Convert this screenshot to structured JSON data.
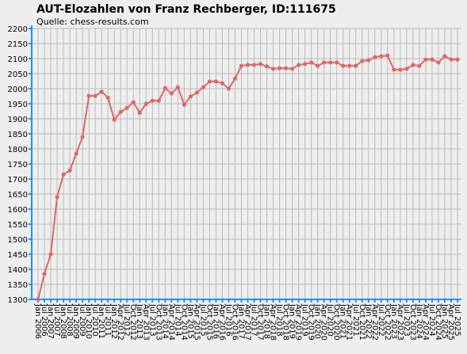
{
  "chart_data": {
    "type": "line",
    "title": "AUT-Elozahlen von Franz Rechberger, ID:111675",
    "subtitle": "Quelle: chess-results.com",
    "categories": [
      "Jan 2006",
      "Jul 2006",
      "Jan 2007",
      "Jul 2007",
      "Jan 2008",
      "Jul 2008",
      "Jan 2009",
      "Jul 2009",
      "Jan 2010",
      "Jul 2010",
      "Jan 2011",
      "Jul 2011",
      "Jan 2012",
      "Apr 2012",
      "Jul 2012",
      "Oct 2012",
      "Jan 2013",
      "Apr 2013",
      "Jul 2013",
      "Oct 2013",
      "Jan 2014",
      "Apr 2014",
      "Jul 2014",
      "Oct 2014",
      "Jan 2015",
      "Apr 2015",
      "Jul 2015",
      "Oct 2015",
      "Jan 2016",
      "Apr 2016",
      "Jul 2016",
      "Oct 2016",
      "Jan 2017",
      "Apr 2017",
      "Jul 2017",
      "Oct 2017",
      "Jan 2018",
      "Apr 2018",
      "Jul 2018",
      "Oct 2018",
      "Jan 2019",
      "Apr 2019",
      "Jul 2019",
      "Oct 2019",
      "Jan 2020",
      "Apr 2020",
      "Jul 2020",
      "Oct 2020",
      "Jan 2021",
      "Apr 2021",
      "Jul 2021",
      "Oct 2021",
      "Jan 2022",
      "Apr 2022",
      "Jul 2022",
      "Oct 2022",
      "Jan 2023",
      "Apr 2023",
      "Jul 2023",
      "Oct 2023",
      "Jan 2024",
      "Apr 2024",
      "Jul 2024",
      "Oct 2024",
      "Jan 2025",
      "Apr 2025",
      "Jul 2025"
    ],
    "series": [
      {
        "name": "Elo",
        "color": "#e06666",
        "values": [
          1300,
          1385,
          1450,
          1640,
          1715,
          1728,
          1784,
          1840,
          1976,
          1976,
          1990,
          1970,
          1897,
          1923,
          1936,
          1955,
          1920,
          1950,
          1960,
          1960,
          2002,
          1984,
          2005,
          1947,
          1974,
          1987,
          2005,
          2024,
          2024,
          2018,
          2000,
          2034,
          2076,
          2079,
          2079,
          2082,
          2074,
          2066,
          2068,
          2068,
          2066,
          2079,
          2082,
          2087,
          2076,
          2087,
          2087,
          2087,
          2076,
          2076,
          2076,
          2092,
          2095,
          2105,
          2108,
          2110,
          2063,
          2063,
          2066,
          2079,
          2076,
          2097,
          2097,
          2087,
          2108,
          2097,
          2097
        ]
      }
    ],
    "ylim": [
      1300,
      2200
    ],
    "yticks": [
      1300,
      1350,
      1400,
      1450,
      1500,
      1550,
      1600,
      1650,
      1700,
      1750,
      1800,
      1850,
      1900,
      1950,
      2000,
      2050,
      2100,
      2150,
      2200
    ],
    "grid": true
  }
}
